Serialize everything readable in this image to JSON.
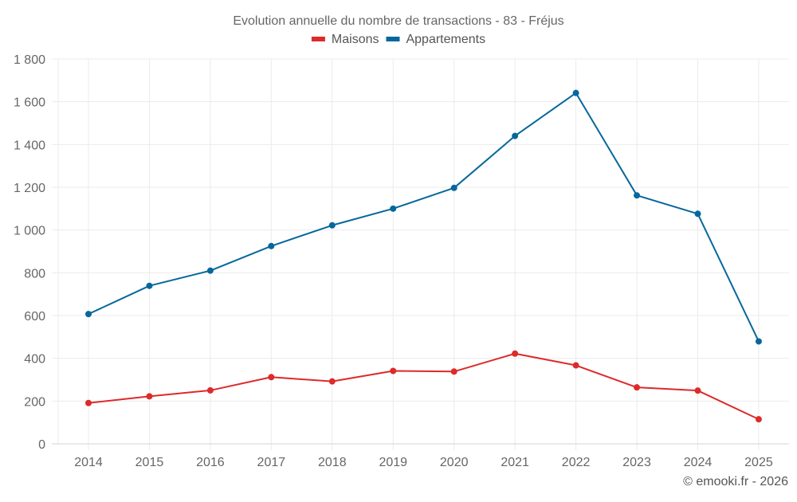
{
  "chart_data": {
    "type": "line",
    "title": "Evolution annuelle du nombre de transactions - 83 - Fréjus",
    "xlabel": "",
    "ylabel": "",
    "x": [
      "2014",
      "2015",
      "2016",
      "2017",
      "2018",
      "2019",
      "2020",
      "2021",
      "2022",
      "2023",
      "2024",
      "2025"
    ],
    "series": [
      {
        "name": "Maisons",
        "color": "#dd2a2a",
        "values": [
          191,
          222,
          250,
          312,
          292,
          341,
          338,
          422,
          367,
          264,
          249,
          115
        ]
      },
      {
        "name": "Appartements",
        "color": "#06679c",
        "values": [
          607,
          739,
          810,
          925,
          1022,
          1100,
          1197,
          1440,
          1641,
          1162,
          1076,
          479
        ]
      }
    ],
    "ylim": [
      0,
      1800
    ],
    "yticks": [
      0,
      200,
      400,
      600,
      800,
      1000,
      1200,
      1400,
      1600,
      1800
    ],
    "ytick_labels": [
      "0",
      "200",
      "400",
      "600",
      "800",
      "1 000",
      "1 200",
      "1 400",
      "1 600",
      "1 800"
    ],
    "grid": true,
    "legend_position": "top-center",
    "footer": "© emooki.fr - 2026"
  }
}
